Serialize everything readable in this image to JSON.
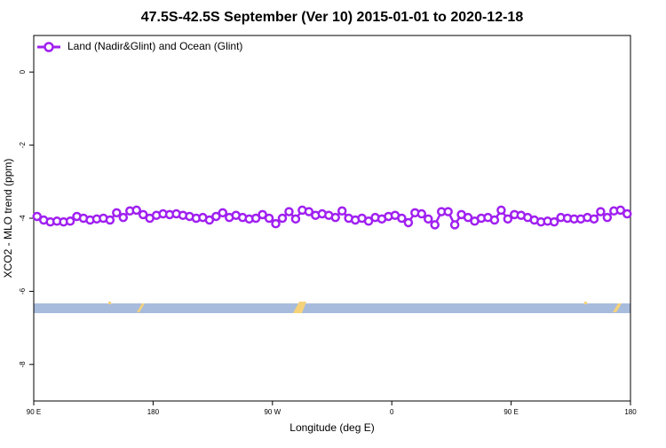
{
  "chart_data": {
    "type": "line",
    "title": "47.5S-42.5S September (Ver 10)   2015-01-01 to 2020-12-18",
    "x_label": "Longitude (deg E)",
    "y_label": "XCO2 - MLO trend (ppm)",
    "xlim": [
      90,
      540
    ],
    "xticks": [
      {
        "value": 90,
        "label": "90 E"
      },
      {
        "value": 180,
        "label": "180"
      },
      {
        "value": 270,
        "label": "90 W"
      },
      {
        "value": 360,
        "label": "0"
      },
      {
        "value": 450,
        "label": "90 E"
      },
      {
        "value": 540,
        "label": "180"
      }
    ],
    "ylim": [
      -9,
      1
    ],
    "yticks": [
      0,
      -2,
      -4,
      -6,
      -8
    ],
    "legend": "top-left",
    "x": [
      92.5,
      97.5,
      102.5,
      107.5,
      112.5,
      117.5,
      122.5,
      127.5,
      132.5,
      137.5,
      142.5,
      147.5,
      152.5,
      157.5,
      162.5,
      167.5,
      172.5,
      177.5,
      182.5,
      187.5,
      192.5,
      197.5,
      202.5,
      207.5,
      212.5,
      217.5,
      222.5,
      227.5,
      232.5,
      237.5,
      242.5,
      247.5,
      252.5,
      257.5,
      262.5,
      267.5,
      272.5,
      277.5,
      282.5,
      287.5,
      292.5,
      297.5,
      302.5,
      307.5,
      312.5,
      317.5,
      322.5,
      327.5,
      332.5,
      337.5,
      342.5,
      347.5,
      352.5,
      357.5,
      362.5,
      367.5,
      372.5,
      377.5,
      382.5,
      387.5,
      392.5,
      397.5,
      402.5,
      407.5,
      412.5,
      417.5,
      422.5,
      427.5,
      432.5,
      437.5,
      442.5,
      447.5,
      452.5,
      457.5,
      462.5,
      467.5,
      472.5,
      477.5,
      482.5,
      487.5,
      492.5,
      497.5,
      502.5,
      507.5,
      512.5,
      517.5,
      522.5,
      527.5,
      532.5,
      537.5
    ],
    "series": [
      {
        "name": "Land (Nadir&Glint) and Ocean (Glint)",
        "color": "#a020f0",
        "values": [
          -3.95,
          -4.05,
          -4.1,
          -4.08,
          -4.1,
          -4.08,
          -3.95,
          -4.0,
          -4.05,
          -4.02,
          -4.0,
          -4.05,
          -3.85,
          -3.98,
          -3.8,
          -3.78,
          -3.9,
          -4.0,
          -3.92,
          -3.88,
          -3.9,
          -3.88,
          -3.92,
          -3.95,
          -4.0,
          -3.98,
          -4.05,
          -3.95,
          -3.85,
          -3.98,
          -3.92,
          -3.98,
          -4.02,
          -4.0,
          -3.9,
          -4.0,
          -4.15,
          -4.0,
          -3.82,
          -4.02,
          -3.78,
          -3.82,
          -3.92,
          -3.88,
          -3.92,
          -3.98,
          -3.8,
          -4.0,
          -4.05,
          -4.0,
          -4.08,
          -3.98,
          -4.02,
          -3.95,
          -3.92,
          -4.0,
          -4.12,
          -3.85,
          -3.88,
          -4.02,
          -4.18,
          -3.82,
          -3.82,
          -4.18,
          -3.9,
          -3.98,
          -4.08,
          -4.0,
          -3.98,
          -4.05,
          -3.78,
          -4.02,
          -3.9,
          -3.92,
          -3.98,
          -4.05,
          -4.1,
          -4.08,
          -4.1,
          -3.98,
          -4.0,
          -4.02,
          -4.02,
          -3.98,
          -4.02,
          -3.82,
          -3.98,
          -3.8,
          -3.78,
          -3.88
        ]
      }
    ]
  }
}
